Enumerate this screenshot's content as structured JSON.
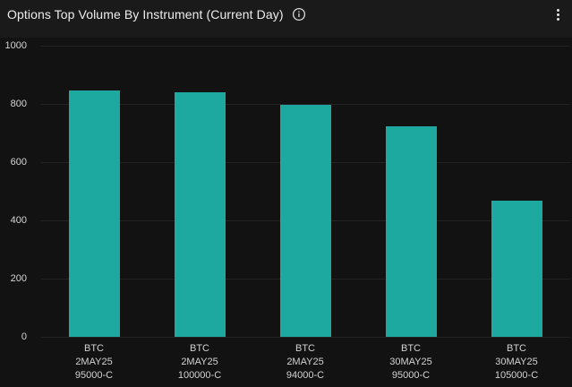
{
  "header": {
    "title": "Options Top Volume By Instrument (Current Day)",
    "info_icon": "info-circle",
    "menu_icon": "kebab-vertical"
  },
  "colors": {
    "bar": "#1ea9a0",
    "header_bg": "#1a1a1a",
    "chart_bg": "#121212",
    "gridline": "#232323",
    "tick_text": "#d6d6d6",
    "title_text": "#ededed"
  },
  "chart_data": {
    "type": "bar",
    "title": "Options Top Volume By Instrument (Current Day)",
    "categories": [
      [
        "BTC",
        "2MAY25",
        "95000-C"
      ],
      [
        "BTC",
        "2MAY25",
        "100000-C"
      ],
      [
        "BTC",
        "2MAY25",
        "94000-C"
      ],
      [
        "BTC",
        "30MAY25",
        "95000-C"
      ],
      [
        "BTC",
        "30MAY25",
        "105000-C"
      ]
    ],
    "values": [
      845,
      840,
      798,
      724,
      468
    ],
    "xlabel": "",
    "ylabel": "",
    "ylim": [
      0,
      1000
    ],
    "yticks": [
      0,
      200,
      400,
      600,
      800,
      1000
    ],
    "grid": true,
    "legend": false,
    "bar_color": "#1ea9a0"
  }
}
